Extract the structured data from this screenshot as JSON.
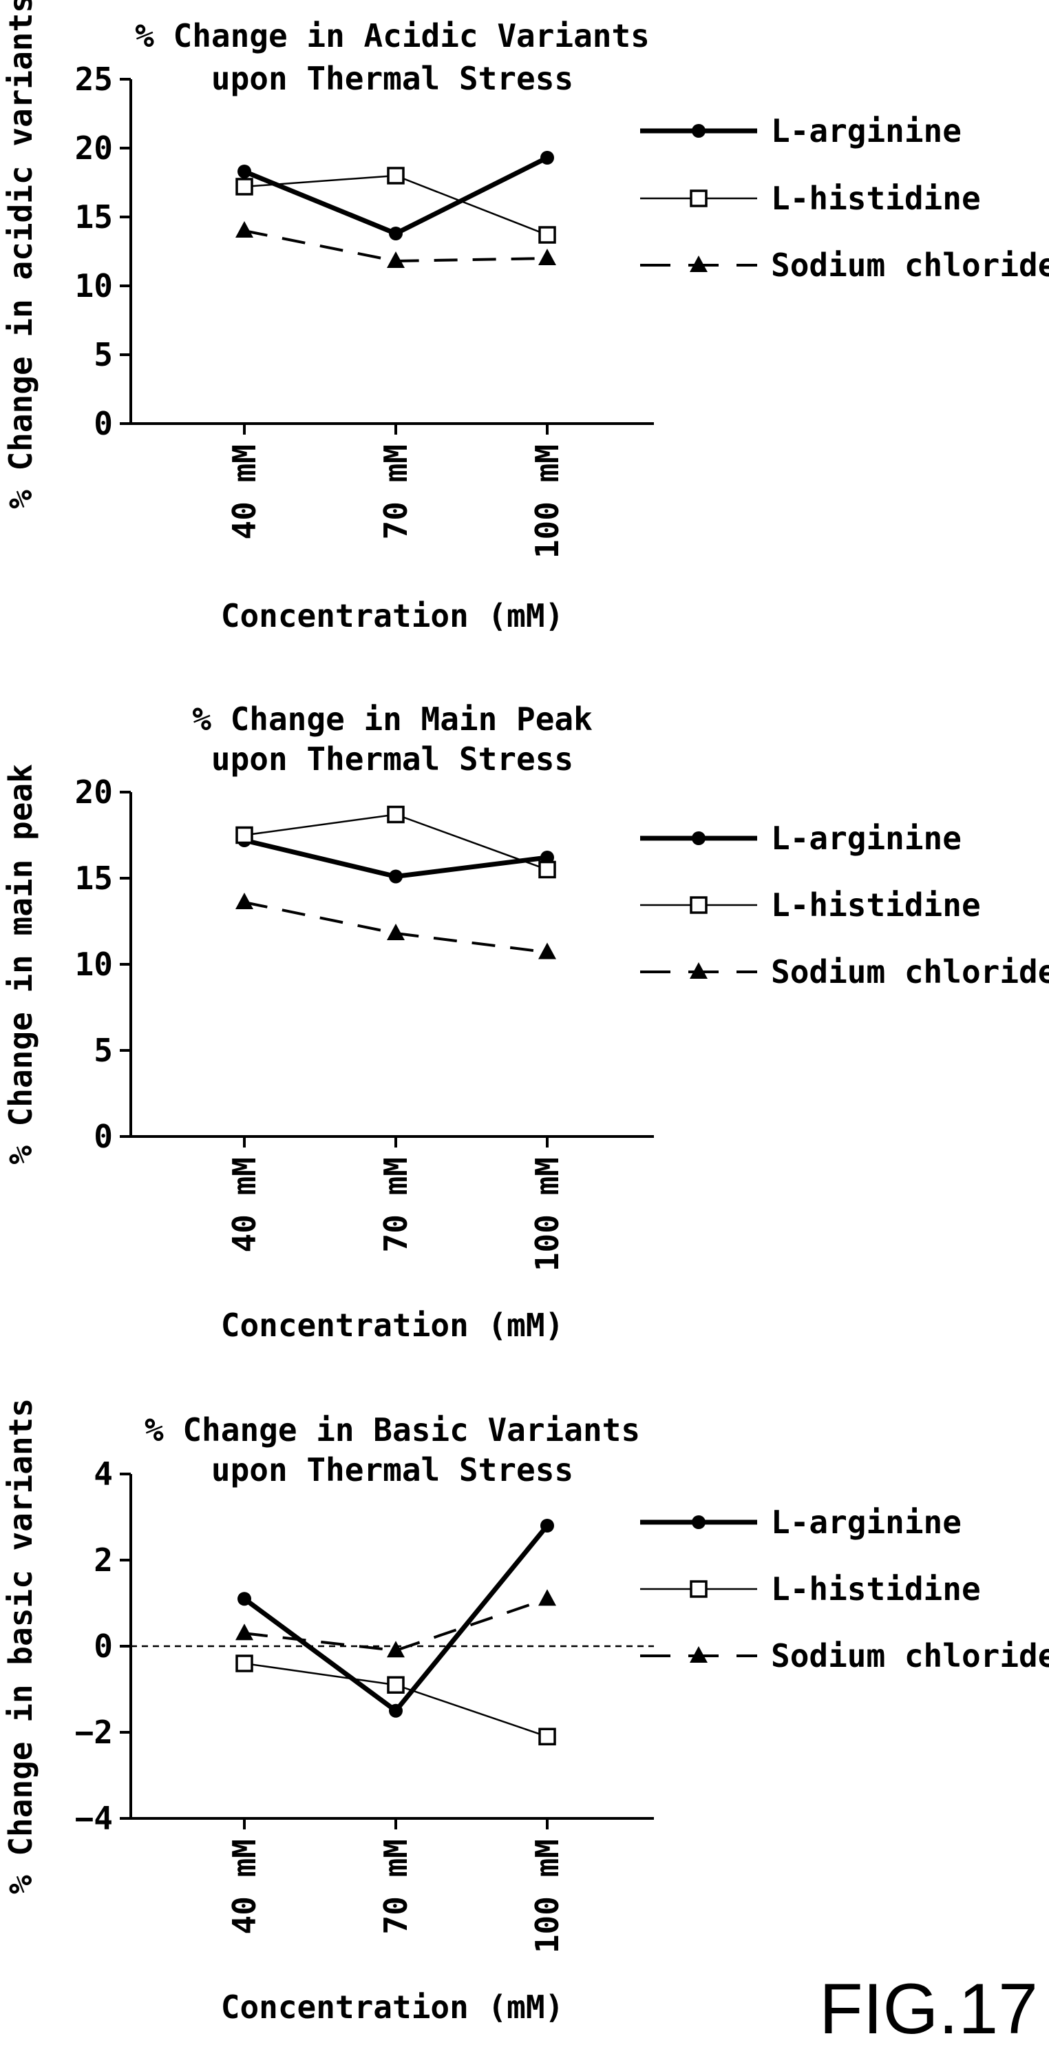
{
  "figure_label": "FIG.17",
  "chart_data": [
    {
      "type": "line",
      "title": [
        "% Change in Acidic Variants",
        "upon Thermal Stress"
      ],
      "xlabel": "Concentration (mM)",
      "ylabel": "% Change in acidic variants",
      "categories": [
        "40 mM",
        "70 mM",
        "100 mM"
      ],
      "ylim": [
        0,
        25
      ],
      "yticks": [
        0,
        5,
        10,
        15,
        20,
        25
      ],
      "zero_line": false,
      "legend_position": "right",
      "series": [
        {
          "name": "L-arginine",
          "values": [
            18.3,
            13.8,
            19.3
          ],
          "marker": "filled-circle",
          "line": "solid-thick"
        },
        {
          "name": "L-histidine",
          "values": [
            17.2,
            18.0,
            13.7
          ],
          "marker": "open-square",
          "line": "solid-thin"
        },
        {
          "name": "Sodium chloride",
          "values": [
            14.0,
            11.8,
            12.0
          ],
          "marker": "filled-triangle",
          "line": "dashed"
        }
      ]
    },
    {
      "type": "line",
      "title": [
        "% Change in Main Peak",
        "upon Thermal Stress"
      ],
      "xlabel": "Concentration (mM)",
      "ylabel": "% Change in main peak",
      "categories": [
        "40 mM",
        "70 mM",
        "100 mM"
      ],
      "ylim": [
        0,
        20
      ],
      "yticks": [
        0,
        5,
        10,
        15,
        20
      ],
      "zero_line": false,
      "legend_position": "right",
      "series": [
        {
          "name": "L-arginine",
          "values": [
            17.2,
            15.1,
            16.2
          ],
          "marker": "filled-circle",
          "line": "solid-thick"
        },
        {
          "name": "L-histidine",
          "values": [
            17.5,
            18.7,
            15.5
          ],
          "marker": "open-square",
          "line": "solid-thin"
        },
        {
          "name": "Sodium chloride",
          "values": [
            13.6,
            11.8,
            10.7
          ],
          "marker": "filled-triangle",
          "line": "dashed"
        }
      ]
    },
    {
      "type": "line",
      "title": [
        "% Change in Basic Variants",
        "upon Thermal Stress"
      ],
      "xlabel": "Concentration (mM)",
      "ylabel": "% Change in basic variants",
      "categories": [
        "40 mM",
        "70 mM",
        "100 mM"
      ],
      "ylim": [
        -4,
        4
      ],
      "yticks": [
        -4,
        -2,
        0,
        2,
        4
      ],
      "ytick_labels": [
        "−4",
        "−2",
        "0",
        "2",
        "4"
      ],
      "zero_line": true,
      "legend_position": "right",
      "series": [
        {
          "name": "L-arginine",
          "values": [
            1.1,
            -1.5,
            2.8
          ],
          "marker": "filled-circle",
          "line": "solid-thick"
        },
        {
          "name": "L-histidine",
          "values": [
            -0.4,
            -0.9,
            -2.1
          ],
          "marker": "open-square",
          "line": "solid-thin"
        },
        {
          "name": "Sodium chloride",
          "values": [
            0.3,
            -0.1,
            1.1
          ],
          "marker": "filled-triangle",
          "line": "dashed"
        }
      ]
    }
  ]
}
